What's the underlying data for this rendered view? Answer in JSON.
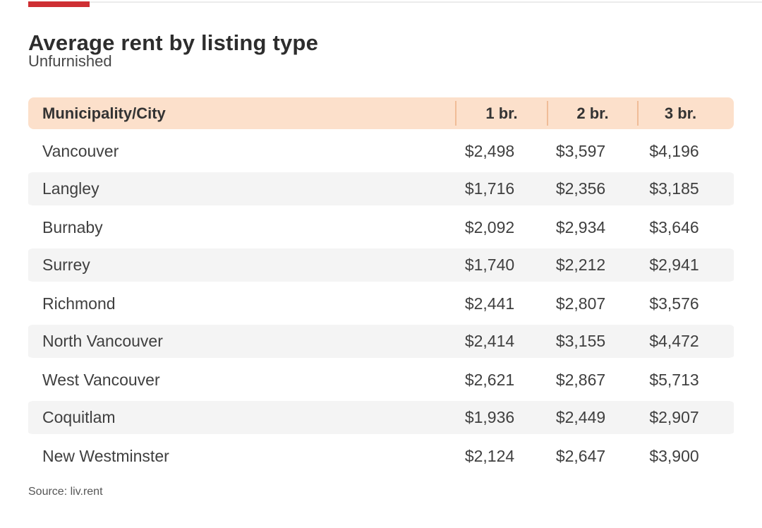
{
  "page": {
    "title": "Average rent by listing type",
    "subtitle": "Unfurnished",
    "source": "Source: liv.rent"
  },
  "colors": {
    "accent_red": "#ce2f33",
    "top_rule_gray": "#ececec",
    "header_bg_peach": "#fce0cb",
    "header_divider_peach": "#f0bc97",
    "row_alt_gray": "#f4f4f4",
    "text_dark": "#2d2d2d",
    "text_body": "#3f3f3f",
    "text_muted": "#555555"
  },
  "table": {
    "columns": [
      "Municipality/City",
      "1 br.",
      "2 br.",
      "3 br."
    ],
    "rows": [
      {
        "city": "Vancouver",
        "br1": "$2,498",
        "br2": "$3,597",
        "br3": "$4,196"
      },
      {
        "city": "Langley",
        "br1": "$1,716",
        "br2": "$2,356",
        "br3": "$3,185"
      },
      {
        "city": "Burnaby",
        "br1": "$2,092",
        "br2": "$2,934",
        "br3": "$3,646"
      },
      {
        "city": "Surrey",
        "br1": "$1,740",
        "br2": "$2,212",
        "br3": "$2,941"
      },
      {
        "city": "Richmond",
        "br1": "$2,441",
        "br2": "$2,807",
        "br3": "$3,576"
      },
      {
        "city": "North Vancouver",
        "br1": "$2,414",
        "br2": "$3,155",
        "br3": "$4,472"
      },
      {
        "city": "West Vancouver",
        "br1": "$2,621",
        "br2": "$2,867",
        "br3": "$5,713"
      },
      {
        "city": "Coquitlam",
        "br1": "$1,936",
        "br2": "$2,449",
        "br3": "$2,907"
      },
      {
        "city": "New Westminster",
        "br1": "$2,124",
        "br2": "$2,647",
        "br3": "$3,900"
      }
    ]
  },
  "chart_data": {
    "type": "table",
    "title": "Average rent by listing type",
    "subtitle": "Unfurnished",
    "source": "Source: liv.rent",
    "columns": [
      "Municipality/City",
      "1 br.",
      "2 br.",
      "3 br."
    ],
    "rows": [
      {
        "municipality": "Vancouver",
        "br_1": 2498,
        "br_2": 3597,
        "br_3": 4196
      },
      {
        "municipality": "Langley",
        "br_1": 1716,
        "br_2": 2356,
        "br_3": 3185
      },
      {
        "municipality": "Burnaby",
        "br_1": 2092,
        "br_2": 2934,
        "br_3": 3646
      },
      {
        "municipality": "Surrey",
        "br_1": 1740,
        "br_2": 2212,
        "br_3": 2941
      },
      {
        "municipality": "Richmond",
        "br_1": 2441,
        "br_2": 2807,
        "br_3": 3576
      },
      {
        "municipality": "North Vancouver",
        "br_1": 2414,
        "br_2": 3155,
        "br_3": 4472
      },
      {
        "municipality": "West Vancouver",
        "br_1": 2621,
        "br_2": 2867,
        "br_3": 5713
      },
      {
        "municipality": "Coquitlam",
        "br_1": 1936,
        "br_2": 2449,
        "br_3": 2907
      },
      {
        "municipality": "New Westminster",
        "br_1": 2124,
        "br_2": 2647,
        "br_3": 3900
      }
    ],
    "units": "CAD per month",
    "layout": {
      "alternating_row_shading": true,
      "header_highlight": "peach"
    }
  }
}
